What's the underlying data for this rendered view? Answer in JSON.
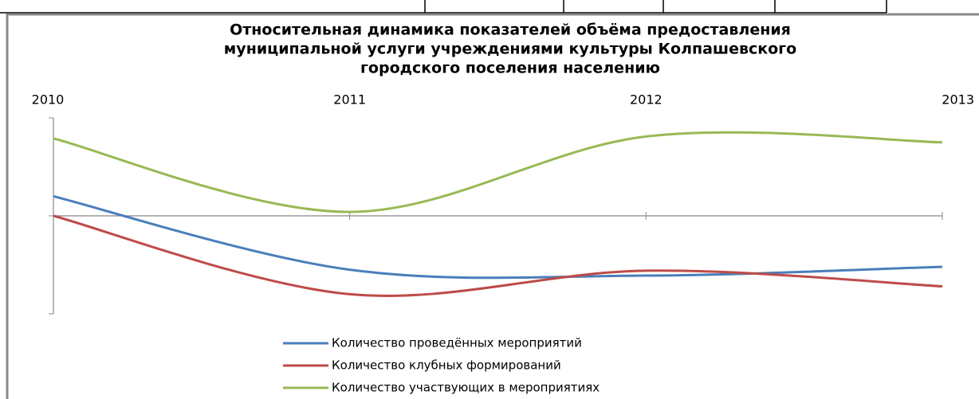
{
  "chart_data": {
    "type": "line",
    "title": [
      "Относительная динамика показателей объёма предоставления",
      "муниципальной услуги учреждениями культуры Колпашевского",
      "городского поселения населению"
    ],
    "categories": [
      "2010",
      "2011",
      "2012",
      "2013"
    ],
    "series": [
      {
        "name": "Количество проведённых мероприятий",
        "color": "#4a7ebb",
        "values": [
          0.2,
          -0.55,
          -0.61,
          -0.52
        ]
      },
      {
        "name": "Количество клубных формирований",
        "color": "#be4b48",
        "values": [
          0,
          -0.8,
          -0.56,
          -0.72
        ]
      },
      {
        "name": "Количество участвующих в мероприятиях",
        "color": "#98b954",
        "values": [
          0.79,
          0.04,
          0.81,
          0.75
        ]
      }
    ],
    "ylim": [
      -1,
      1
    ],
    "yticks": [
      -1,
      0,
      1
    ],
    "smooth": true,
    "legend": "bottom"
  }
}
